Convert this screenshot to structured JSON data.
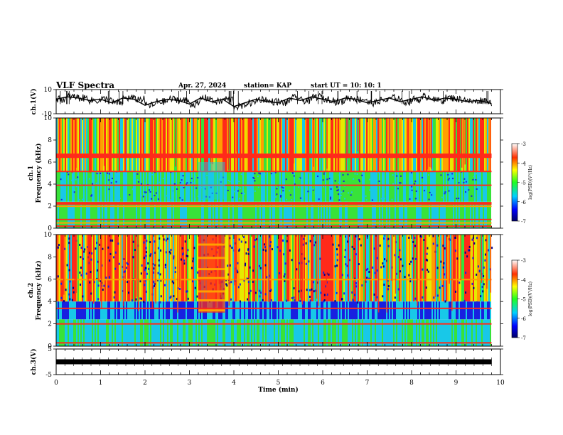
{
  "header": {
    "title": "VLF Spectra",
    "date": "Apr. 27, 2024",
    "station": "station= KAP",
    "start": "start  UT  =   10: 10: 1"
  },
  "colors": {
    "red": "#ff2a1a",
    "orange": "#ff9f00",
    "yellow": "#e6ea00",
    "green": "#38e23a",
    "cyan": "#18c8e8",
    "blue": "#1820e0",
    "navy": "#00008c",
    "axis": "#000000"
  },
  "chart_data": [
    {
      "type": "line",
      "panel": "ch1-waveform",
      "ylabel": "ch.1(V)",
      "ylim": [
        -10,
        10
      ],
      "yticks": [
        "10",
        "-10"
      ],
      "xlim": [
        0,
        10
      ],
      "x": [
        0,
        0.25,
        0.5,
        0.75,
        1,
        1.25,
        1.5,
        1.75,
        2,
        2.25,
        2.5,
        2.75,
        3,
        3.25,
        3.5,
        3.75,
        4,
        4.25,
        4.5,
        4.75,
        5,
        5.25,
        5.5,
        5.75,
        6,
        6.25,
        6.5,
        6.75,
        7,
        7.25,
        7.5,
        7.75,
        8,
        8.25,
        8.5,
        8.75,
        9,
        9.25,
        9.5,
        9.75,
        9.8
      ],
      "y": [
        2,
        4,
        3,
        1,
        2,
        -1,
        3,
        2,
        -3,
        0,
        2,
        1,
        -2,
        3,
        0,
        2,
        -4,
        -1,
        2,
        0,
        -1,
        3,
        1,
        4,
        2,
        0,
        3,
        2,
        -1,
        1,
        3,
        0,
        2,
        4,
        1,
        3,
        2,
        0,
        1,
        -1,
        -2
      ]
    },
    {
      "type": "heatmap",
      "panel": "ch1-spectrogram",
      "ylabel": "ch.1\nFrequency (kHz)",
      "ylim": [
        0,
        10
      ],
      "yticks": [
        "0",
        "2",
        "4",
        "6",
        "8",
        "10"
      ],
      "xlim": [
        0,
        10
      ],
      "colorbar": {
        "label": "log(PSD)(V²/Hz)",
        "range": [
          -7,
          -3
        ],
        "ticks": [
          "-3",
          "-4",
          "-5",
          "-6",
          "-7"
        ]
      }
    },
    {
      "type": "heatmap",
      "panel": "ch2-spectrogram",
      "ylabel": "ch.2\nFrequency (kHz)",
      "ylim": [
        0,
        10
      ],
      "yticks": [
        "0",
        "2",
        "4",
        "6",
        "8",
        "10"
      ],
      "xlim": [
        0,
        10
      ],
      "colorbar": {
        "label": "log(PSD)(V²/Hz)",
        "range": [
          -7,
          -3
        ],
        "ticks": [
          "-3",
          "-4",
          "-5",
          "-6",
          "-7"
        ]
      }
    },
    {
      "type": "line",
      "panel": "ch3-waveform",
      "ylabel": "ch.3(V)",
      "ylim": [
        -5,
        5
      ],
      "yticks": [
        "5",
        "-5"
      ],
      "xlim": [
        0,
        10
      ],
      "x": [
        0,
        9.8
      ],
      "y": [
        0,
        0
      ]
    }
  ],
  "xaxis": {
    "label": "Time (min)",
    "ticks": [
      "0",
      "1",
      "2",
      "3",
      "4",
      "5",
      "6",
      "7",
      "8",
      "9",
      "10"
    ]
  }
}
